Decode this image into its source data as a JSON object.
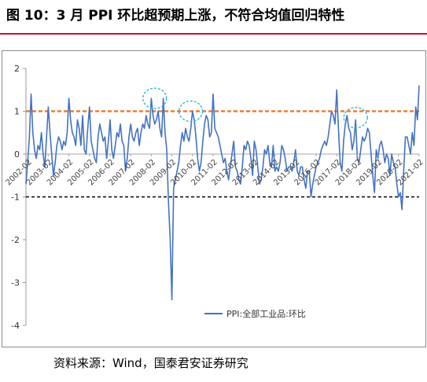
{
  "title": "图 10：3 月 PPI 环比超预期上涨，不符合均值回归特性",
  "source": "资料来源：Wind，国泰君安证券研究",
  "colors": {
    "line": "#4472c4",
    "upper_ref": "#ed7d31",
    "lower_ref": "#000000",
    "highlight": "#33b6d6",
    "title_rule": "#c8102e"
  },
  "chart_data": {
    "type": "line",
    "title": "",
    "xlabel": "",
    "ylabel": "",
    "ylim": [
      -4,
      2
    ],
    "yticks": [
      -4,
      -3,
      -2,
      -1,
      0,
      1,
      2
    ],
    "xtick_labels": [
      "2002-02",
      "2003-02",
      "2004-02",
      "2005-02",
      "2006-02",
      "2007-02",
      "2008-02",
      "2009-02",
      "2010-02",
      "2011-02",
      "2012-02",
      "2013-02",
      "2014-02",
      "2015-02",
      "2016-02",
      "2017-02",
      "2018-02",
      "2019-02",
      "2020-02",
      "2021-02"
    ],
    "legend": {
      "entries": [
        "PPI:全部工业品:环比"
      ],
      "position": "bottom-right"
    },
    "reference_lines": [
      {
        "y": 1,
        "style": "dashed",
        "color": "#ed7d31"
      },
      {
        "y": -1,
        "style": "dashed",
        "color": "#000000"
      }
    ],
    "highlight_circles": [
      {
        "center_date": "2008-04",
        "center_value": 1.3
      },
      {
        "center_date": "2010-01",
        "center_value": 1.0
      },
      {
        "center_date": "2018-01",
        "center_value": 0.85
      }
    ],
    "series": [
      {
        "name": "PPI:全部工业品:环比",
        "start": "2002-01",
        "frequency": "monthly",
        "values": [
          -0.7,
          -0.2,
          0.4,
          1.4,
          0.5,
          0.1,
          -0.1,
          0.2,
          0.1,
          0.5,
          0.0,
          -0.3,
          0.4,
          1.1,
          0.5,
          0.0,
          -0.5,
          -0.2,
          0.2,
          0.4,
          0.3,
          0.1,
          0.3,
          0.2,
          0.5,
          1.3,
          0.8,
          0.5,
          0.4,
          0.2,
          0.8,
          0.6,
          0.2,
          0.9,
          0.1,
          0.0,
          0.6,
          1.1,
          0.3,
          0.1,
          -0.1,
          -0.2,
          0.4,
          0.7,
          0.5,
          0.3,
          0.4,
          -0.1,
          0.3,
          0.8,
          0.1,
          -0.1,
          0.2,
          0.5,
          0.4,
          0.7,
          0.3,
          0.2,
          -0.4,
          -0.1,
          0.4,
          0.7,
          0.4,
          0.3,
          0.5,
          0.6,
          0.2,
          0.5,
          0.7,
          0.6,
          0.9,
          0.7,
          0.6,
          1.3,
          0.9,
          0.7,
          0.8,
          1.0,
          0.6,
          0.4,
          1.3,
          0.5,
          0.1,
          -1.1,
          -2.0,
          -3.4,
          -0.8,
          -0.6,
          -0.4,
          -0.2,
          0.2,
          0.5,
          0.3,
          0.6,
          0.4,
          0.3,
          0.6,
          1.0,
          0.8,
          0.4,
          -0.1,
          -0.4,
          -0.2,
          0.3,
          0.7,
          0.9,
          0.8,
          0.4,
          0.5,
          1.4,
          0.6,
          0.5,
          0.4,
          0.2,
          0.0,
          -0.2,
          -0.1,
          -0.4,
          -0.6,
          -0.3,
          0.0,
          0.3,
          -0.3,
          -0.4,
          -0.6,
          -0.7,
          -0.3,
          0.2,
          0.1,
          0.3,
          0.2,
          -0.1,
          -0.5,
          0.3,
          0.1,
          -0.3,
          -0.7,
          -0.6,
          -0.3,
          0.1,
          0.0,
          0.2,
          -0.2,
          -0.3,
          0.2,
          -0.4,
          -0.3,
          -0.4,
          -0.2,
          0.2,
          0.1,
          -0.1,
          -0.4,
          -0.3,
          -0.3,
          -0.4,
          -0.2,
          0.1,
          -0.4,
          -0.5,
          -0.3,
          -0.3,
          -0.6,
          -0.8,
          -0.4,
          -0.4,
          -1.0,
          -0.7,
          -0.5,
          -0.3,
          -0.2,
          -0.1,
          0.1,
          0.2,
          0.3,
          0.2,
          0.4,
          0.7,
          1.0,
          0.9,
          0.7,
          1.5,
          0.6,
          -0.2,
          -0.4,
          0.3,
          0.7,
          0.9,
          0.6,
          0.5,
          0.1,
          0.3,
          0.8,
          -0.1,
          -0.2,
          0.1,
          0.4,
          0.3,
          0.4,
          0.6,
          0.5,
          0.0,
          -0.5,
          -0.9,
          0.1,
          -0.1,
          0.2,
          0.3,
          0.1,
          -0.2,
          0.0,
          -0.1,
          -0.5,
          0.0,
          -0.2,
          -0.3,
          -0.7,
          -1.0,
          -0.9,
          -1.3,
          -0.4,
          0.4,
          0.4,
          0.2,
          0.0,
          0.5,
          0.2,
          1.1,
          0.8,
          1.6
        ]
      }
    ]
  }
}
